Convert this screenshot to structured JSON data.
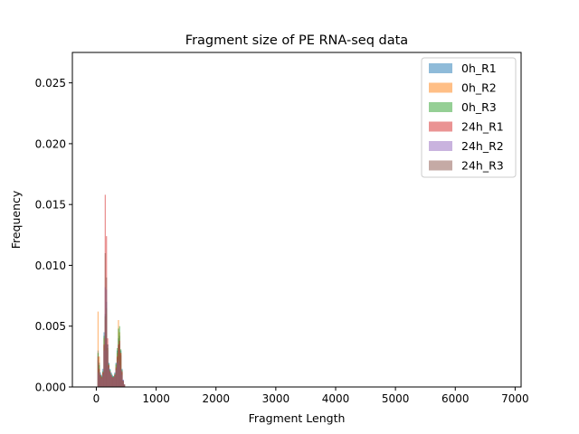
{
  "chart_data": {
    "type": "histogram",
    "title": "Fragment size of PE RNA-seq data",
    "xlabel": "Fragment Length",
    "ylabel": "Frequency",
    "xlim": [
      -400,
      7100
    ],
    "ylim": [
      0,
      0.0275
    ],
    "xticks": [
      0,
      1000,
      2000,
      3000,
      4000,
      5000,
      6000,
      7000
    ],
    "xtick_labels": [
      "0",
      "1000",
      "2000",
      "3000",
      "4000",
      "5000",
      "6000",
      "7000"
    ],
    "yticks": [
      0.0,
      0.005,
      0.01,
      0.015,
      0.02,
      0.025
    ],
    "ytick_labels": [
      "0.000",
      "0.005",
      "0.010",
      "0.015",
      "0.020",
      "0.025"
    ],
    "grid": false,
    "legend_position": "top-right",
    "series": [
      {
        "name": "0h_R1",
        "color": "#1f77b4",
        "bins": [
          [
            30,
            0.003
          ],
          [
            50,
            0.002
          ],
          [
            70,
            0.0012
          ],
          [
            90,
            0.001
          ],
          [
            110,
            0.0015
          ],
          [
            130,
            0.0045
          ],
          [
            150,
            0.006
          ],
          [
            170,
            0.007
          ],
          [
            190,
            0.0035
          ],
          [
            210,
            0.002
          ],
          [
            230,
            0.0015
          ],
          [
            250,
            0.0012
          ],
          [
            270,
            0.001
          ],
          [
            290,
            0.0009
          ],
          [
            310,
            0.0012
          ],
          [
            330,
            0.002
          ],
          [
            350,
            0.003
          ],
          [
            370,
            0.004
          ],
          [
            390,
            0.0042
          ],
          [
            410,
            0.003
          ],
          [
            430,
            0.0015
          ],
          [
            450,
            0.0006
          ],
          [
            470,
            0.0002
          ]
        ]
      },
      {
        "name": "0h_R2",
        "color": "#ff7f0e",
        "bins": [
          [
            30,
            0.0062
          ],
          [
            50,
            0.0025
          ],
          [
            70,
            0.001
          ],
          [
            90,
            0.0008
          ],
          [
            110,
            0.0012
          ],
          [
            130,
            0.004
          ],
          [
            150,
            0.0055
          ],
          [
            170,
            0.006
          ],
          [
            190,
            0.003
          ],
          [
            210,
            0.0018
          ],
          [
            230,
            0.0012
          ],
          [
            250,
            0.001
          ],
          [
            270,
            0.0008
          ],
          [
            290,
            0.0008
          ],
          [
            310,
            0.001
          ],
          [
            330,
            0.0018
          ],
          [
            350,
            0.0028
          ],
          [
            370,
            0.0055
          ],
          [
            390,
            0.0045
          ],
          [
            410,
            0.0028
          ],
          [
            430,
            0.0012
          ],
          [
            450,
            0.0005
          ],
          [
            470,
            0.0002
          ]
        ]
      },
      {
        "name": "0h_R3",
        "color": "#2ca02c",
        "bins": [
          [
            30,
            0.0028
          ],
          [
            50,
            0.0018
          ],
          [
            70,
            0.001
          ],
          [
            90,
            0.0009
          ],
          [
            110,
            0.0013
          ],
          [
            130,
            0.0042
          ],
          [
            150,
            0.0058
          ],
          [
            170,
            0.0065
          ],
          [
            190,
            0.0032
          ],
          [
            210,
            0.0019
          ],
          [
            230,
            0.0014
          ],
          [
            250,
            0.0011
          ],
          [
            270,
            0.0009
          ],
          [
            290,
            0.0009
          ],
          [
            310,
            0.0011
          ],
          [
            330,
            0.0019
          ],
          [
            350,
            0.0032
          ],
          [
            370,
            0.0048
          ],
          [
            390,
            0.005
          ],
          [
            410,
            0.0031
          ],
          [
            430,
            0.0014
          ],
          [
            450,
            0.0005
          ],
          [
            470,
            0.0002
          ]
        ]
      },
      {
        "name": "24h_R1",
        "color": "#d62728",
        "bins": [
          [
            30,
            0.0025
          ],
          [
            50,
            0.0015
          ],
          [
            70,
            0.001
          ],
          [
            90,
            0.0008
          ],
          [
            110,
            0.0012
          ],
          [
            130,
            0.0035
          ],
          [
            150,
            0.0158
          ],
          [
            170,
            0.0124
          ],
          [
            190,
            0.004
          ],
          [
            210,
            0.0018
          ],
          [
            230,
            0.0013
          ],
          [
            250,
            0.001
          ],
          [
            270,
            0.0008
          ],
          [
            290,
            0.0008
          ],
          [
            310,
            0.001
          ],
          [
            330,
            0.0016
          ],
          [
            350,
            0.0025
          ],
          [
            370,
            0.0035
          ],
          [
            390,
            0.0038
          ],
          [
            410,
            0.0028
          ],
          [
            430,
            0.0013
          ],
          [
            450,
            0.0005
          ],
          [
            470,
            0.0002
          ]
        ]
      },
      {
        "name": "24h_R2",
        "color": "#9467bd",
        "bins": [
          [
            30,
            0.0012
          ],
          [
            50,
            0.001
          ],
          [
            70,
            0.0008
          ],
          [
            90,
            0.0007
          ],
          [
            110,
            0.001
          ],
          [
            130,
            0.003
          ],
          [
            150,
            0.0082
          ],
          [
            170,
            0.008
          ],
          [
            190,
            0.003
          ],
          [
            210,
            0.0016
          ],
          [
            230,
            0.0012
          ],
          [
            250,
            0.001
          ],
          [
            270,
            0.0008
          ],
          [
            290,
            0.0008
          ],
          [
            310,
            0.0009
          ],
          [
            330,
            0.0014
          ],
          [
            350,
            0.002
          ],
          [
            370,
            0.0022
          ],
          [
            390,
            0.0018
          ],
          [
            410,
            0.0014
          ],
          [
            430,
            0.001
          ],
          [
            450,
            0.0006
          ],
          [
            470,
            0.0002
          ]
        ]
      },
      {
        "name": "24h_R3",
        "color": "#8c564b",
        "bins": [
          [
            30,
            0.0022
          ],
          [
            50,
            0.0014
          ],
          [
            70,
            0.0009
          ],
          [
            90,
            0.0008
          ],
          [
            110,
            0.0012
          ],
          [
            130,
            0.0034
          ],
          [
            150,
            0.011
          ],
          [
            170,
            0.009
          ],
          [
            190,
            0.0035
          ],
          [
            210,
            0.0017
          ],
          [
            230,
            0.0012
          ],
          [
            250,
            0.001
          ],
          [
            270,
            0.0008
          ],
          [
            290,
            0.0008
          ],
          [
            310,
            0.001
          ],
          [
            330,
            0.0015
          ],
          [
            350,
            0.0024
          ],
          [
            370,
            0.0034
          ],
          [
            390,
            0.0036
          ],
          [
            410,
            0.0026
          ],
          [
            430,
            0.0012
          ],
          [
            450,
            0.0005
          ],
          [
            470,
            0.0002
          ]
        ]
      }
    ]
  }
}
